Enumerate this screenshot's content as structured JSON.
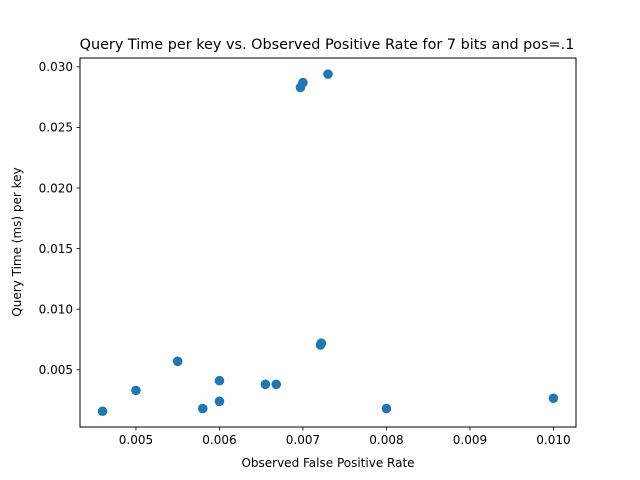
{
  "chart_data": {
    "type": "scatter",
    "title": "Query Time per key vs. Observed Positive Rate for 7 bits and pos=.1",
    "xlabel": "Observed False Positive Rate",
    "ylabel": "Query Time (ms) per key",
    "xlim": [
      0.00433,
      0.01027
    ],
    "ylim": [
      0.00028,
      0.03073
    ],
    "x_ticks": [
      0.005,
      0.006,
      0.007,
      0.008,
      0.009,
      0.01
    ],
    "x_tick_labels": [
      "0.005",
      "0.006",
      "0.007",
      "0.008",
      "0.009",
      "0.010"
    ],
    "y_ticks": [
      0.005,
      0.01,
      0.015,
      0.02,
      0.025,
      0.03
    ],
    "y_tick_labels": [
      "0.005",
      "0.010",
      "0.015",
      "0.020",
      "0.025",
      "0.030"
    ],
    "grid": false,
    "marker_color": "#1f77b4",
    "points": [
      {
        "x": 0.0046,
        "y": 0.00158
      },
      {
        "x": 0.005,
        "y": 0.0033
      },
      {
        "x": 0.0055,
        "y": 0.0057
      },
      {
        "x": 0.0058,
        "y": 0.0018
      },
      {
        "x": 0.006,
        "y": 0.0024
      },
      {
        "x": 0.006,
        "y": 0.0041
      },
      {
        "x": 0.00655,
        "y": 0.0038
      },
      {
        "x": 0.00668,
        "y": 0.0038
      },
      {
        "x": 0.00697,
        "y": 0.0283
      },
      {
        "x": 0.007,
        "y": 0.0287
      },
      {
        "x": 0.00721,
        "y": 0.00705
      },
      {
        "x": 0.00722,
        "y": 0.0072
      },
      {
        "x": 0.0073,
        "y": 0.0294
      },
      {
        "x": 0.008,
        "y": 0.0018
      },
      {
        "x": 0.01,
        "y": 0.00265
      }
    ]
  }
}
